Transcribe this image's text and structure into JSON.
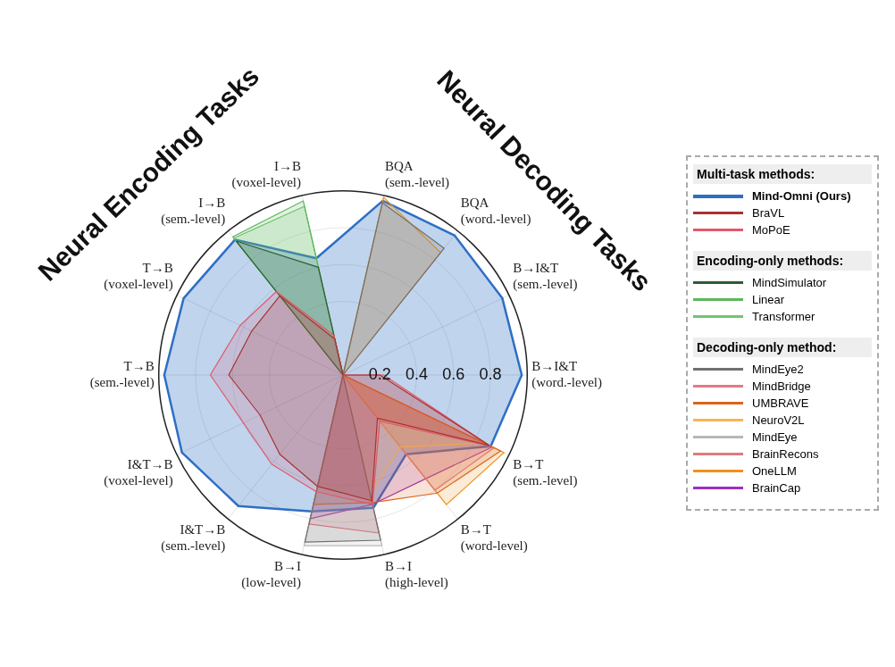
{
  "chart_data": {
    "type": "radar",
    "categories": [
      "BQA (sem.-level)",
      "BQA (word.-level)",
      "B→I&T (sem.-level)",
      "B→I&T (word.-level)",
      "B→T (sem.-level)",
      "B→T (word-level)",
      "B→I (high-level)",
      "B→I (low-level)",
      "I&T→B (sem.-level)",
      "I&T→B (voxel-level)",
      "T→B (sem.-level)",
      "T→B (voxel-level)",
      "I→B (sem.-level)",
      "I→B (voxel-level)"
    ],
    "series": [
      {
        "name": "Mind-Omni (Ours)",
        "color": "#2e6fc4",
        "values": [
          0.97,
          0.97,
          0.96,
          0.97,
          0.89,
          0.55,
          0.74,
          0.76,
          0.91,
          0.97,
          0.97,
          0.96,
          0.94,
          0.65
        ]
      },
      {
        "name": "BraVL",
        "color": "#a83232",
        "values": [
          0,
          0,
          0,
          0.2,
          0.88,
          0.3,
          0.7,
          0.62,
          0.55,
          0.5,
          0.62,
          0.55,
          0.55,
          0.2
        ]
      },
      {
        "name": "MoPoE",
        "color": "#e05a6a",
        "values": [
          0,
          0,
          0,
          0.22,
          0.89,
          0.32,
          0.72,
          0.65,
          0.62,
          0.6,
          0.72,
          0.62,
          0.58,
          0.22
        ]
      },
      {
        "name": "MindSimulator",
        "color": "#2b5e35",
        "values": [
          0,
          0,
          0,
          0,
          0,
          0,
          0,
          0,
          0,
          0,
          0,
          0,
          0.93,
          0.6
        ]
      },
      {
        "name": "Linear",
        "color": "#5cb85c",
        "values": [
          0,
          0,
          0,
          0,
          0,
          0,
          0,
          0,
          0,
          0,
          0,
          0,
          0.96,
          0.97
        ]
      },
      {
        "name": "Transformer",
        "color": "#72c472",
        "values": [
          0,
          0,
          0,
          0,
          0,
          0,
          0,
          0,
          0,
          0,
          0,
          0,
          0.95,
          0.94
        ]
      },
      {
        "name": "MindEye2",
        "color": "#707070",
        "values": [
          0.96,
          0.88,
          0,
          0,
          0,
          0,
          0.92,
          0.93,
          0,
          0,
          0,
          0,
          0,
          0
        ]
      },
      {
        "name": "MindBridge",
        "color": "#e27a88",
        "values": [
          0,
          0,
          0,
          0,
          0,
          0,
          0.88,
          0.83,
          0,
          0,
          0,
          0,
          0,
          0
        ]
      },
      {
        "name": "UMBRAVE",
        "color": "#d9651e",
        "values": [
          0,
          0,
          0,
          0,
          0.95,
          0.82,
          0.71,
          0.72,
          0,
          0,
          0,
          0,
          0,
          0
        ]
      },
      {
        "name": "NeuroV2L",
        "color": "#f5b55a",
        "values": [
          0,
          0,
          0,
          0,
          0.85,
          0.5,
          0.66,
          0,
          0,
          0,
          0,
          0,
          0,
          0
        ]
      },
      {
        "name": "MindEye",
        "color": "#b8b8b8",
        "values": [
          0,
          0,
          0,
          0,
          0,
          0,
          0.95,
          0.95,
          0,
          0,
          0,
          0,
          0,
          0
        ]
      },
      {
        "name": "BrainRecons",
        "color": "#e07b7b",
        "values": [
          0,
          0,
          0,
          0,
          0.91,
          0.8,
          0,
          0,
          0,
          0,
          0,
          0,
          0,
          0
        ]
      },
      {
        "name": "OneLLM",
        "color": "#f0901e",
        "values": [
          0.99,
          0.85,
          0,
          0,
          0.97,
          0.9,
          0,
          0,
          0,
          0,
          0,
          0,
          0,
          0
        ]
      },
      {
        "name": "BrainCap",
        "color": "#9b30c0",
        "values": [
          0,
          0,
          0,
          0,
          0.9,
          0.72,
          0.72,
          0.8,
          0,
          0,
          0,
          0,
          0,
          0
        ]
      }
    ],
    "ylim": [
      0,
      1
    ],
    "yticks": [
      0.2,
      0.4,
      0.6,
      0.8
    ],
    "grid": true,
    "legend": "right",
    "annotations": [
      "Neural Encoding Tasks",
      "Neural Decoding Tasks",
      "Multi-task methods:",
      "Encoding-only methods:",
      "Decoding-only method:"
    ]
  }
}
